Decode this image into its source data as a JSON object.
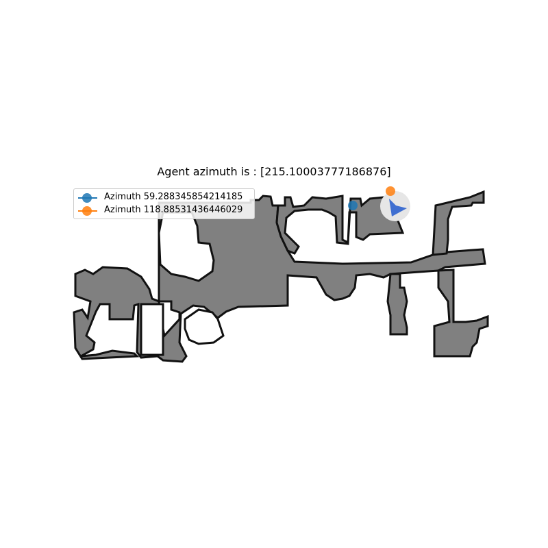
{
  "title": "Agent azimuth is : [215.10003777186876]",
  "legend": {
    "entries": [
      {
        "label": "Azimuth 59.288345854214185",
        "color": "#1f77b4"
      },
      {
        "label": "Azimuth 118.88531436446029",
        "color": "#ff7f0e"
      }
    ]
  },
  "map": {
    "free_color": "#808080",
    "wall_color": "#111111",
    "agent_color": "#3f6fd1",
    "agent_halo_color": "#e6e6e6"
  },
  "markers": [
    {
      "name": "azimuth-1-marker",
      "color": "#1f77b4"
    },
    {
      "name": "azimuth-2-marker",
      "color": "#ff7f0e"
    }
  ],
  "agent": {
    "azimuth_deg": 215.10003777186876
  }
}
